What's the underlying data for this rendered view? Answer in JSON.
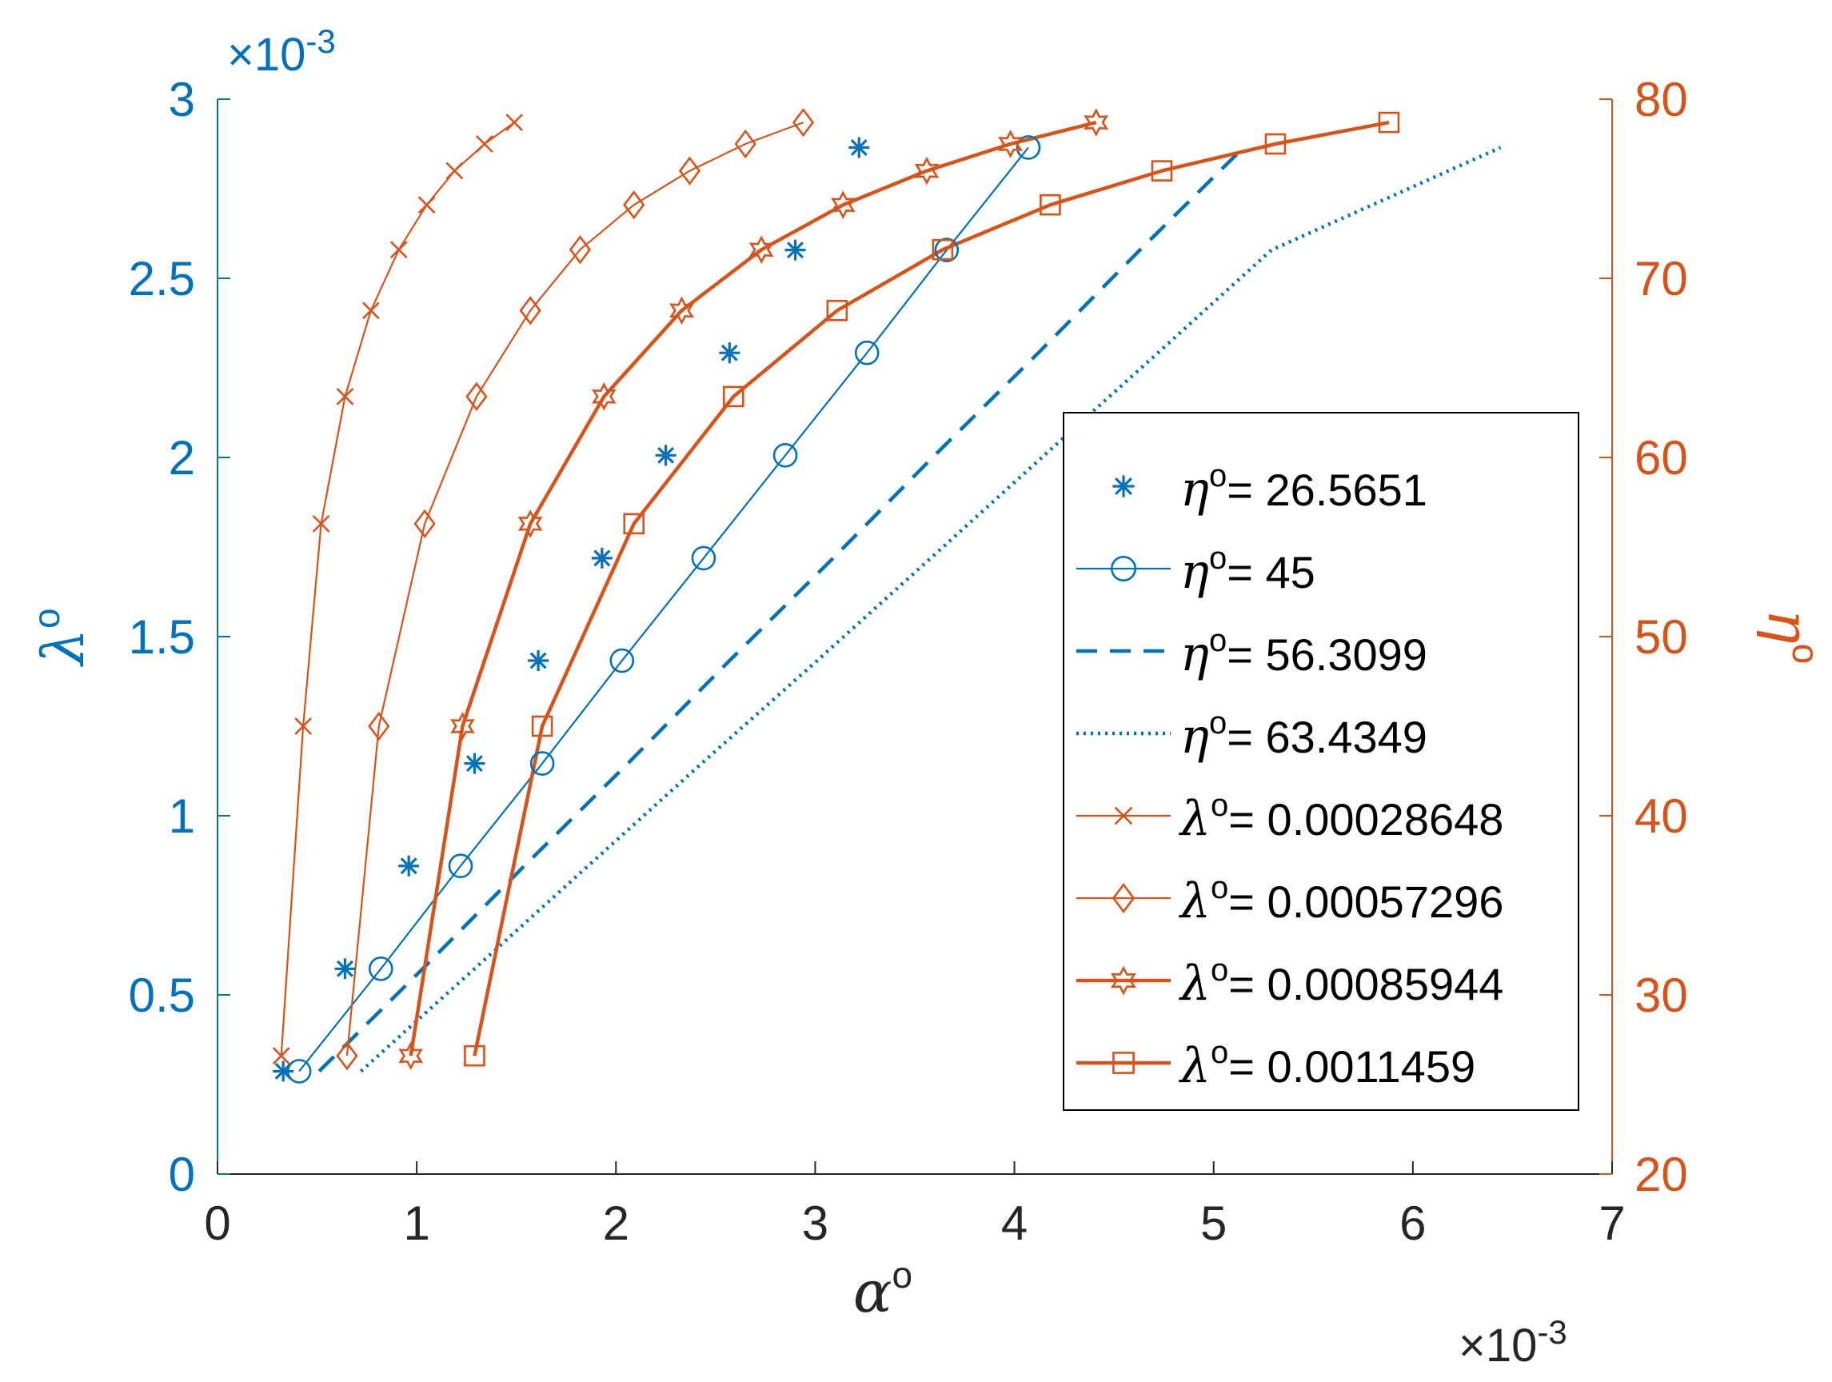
{
  "chart_data": {
    "type": "line",
    "xlabel": "α",
    "xlabel_sup": "o",
    "ylabel_left": "λ",
    "ylabel_left_sup": "o",
    "ylabel_right": "η",
    "ylabel_right_sup": "o",
    "x_exponent_label": "×10",
    "x_exponent_power": "-3",
    "y_left_exponent_label": "×10",
    "y_left_exponent_power": "-3",
    "xlim": [
      0,
      0.007
    ],
    "ylim_left": [
      0,
      0.003
    ],
    "ylim_right": [
      20,
      80
    ],
    "x_ticks": [
      0,
      0.001,
      0.002,
      0.003,
      0.004,
      0.005,
      0.006,
      0.007
    ],
    "x_tick_labels": [
      "0",
      "1",
      "2",
      "3",
      "4",
      "5",
      "6",
      "7"
    ],
    "y_left_ticks": [
      0,
      0.0005,
      0.001,
      0.0015,
      0.002,
      0.0025,
      0.003
    ],
    "y_left_tick_labels": [
      "0",
      "0.5",
      "1",
      "1.5",
      "2",
      "2.5",
      "3"
    ],
    "y_right_ticks": [
      20,
      30,
      40,
      50,
      60,
      70,
      80
    ],
    "y_right_tick_labels": [
      "20",
      "30",
      "40",
      "50",
      "60",
      "70",
      "80"
    ],
    "colors": {
      "left": "#0072BD",
      "right": "#D95319",
      "axis_text": "#262626"
    },
    "legend_position": "middle-right",
    "series": [
      {
        "name_symbol": "η",
        "name_sup": "o",
        "name_value": "= 26.5651",
        "axis": "left",
        "marker": "asterisk",
        "line": "none",
        "weight": "thin",
        "x": [
          0.00033,
          0.00064,
          0.00096,
          0.00129,
          0.00161,
          0.00193,
          0.00225,
          0.00257,
          0.0029,
          0.00322
        ],
        "y": [
          0.000287,
          0.000573,
          0.00086,
          0.001146,
          0.001433,
          0.001719,
          0.002006,
          0.002292,
          0.002579,
          0.002865
        ]
      },
      {
        "name_symbol": "η",
        "name_sup": "o",
        "name_value": "= 45",
        "axis": "left",
        "marker": "circle",
        "line": "solid",
        "weight": "thin",
        "x": [
          0.00041,
          0.00082,
          0.00122,
          0.00163,
          0.00203,
          0.00244,
          0.00285,
          0.00326,
          0.00366,
          0.00407
        ],
        "y": [
          0.000287,
          0.000573,
          0.00086,
          0.001146,
          0.001433,
          0.001719,
          0.002006,
          0.002292,
          0.002579,
          0.002865
        ]
      },
      {
        "name_symbol": "η",
        "name_sup": "o",
        "name_value": "= 56.3099",
        "axis": "left",
        "marker": "none",
        "line": "dashed",
        "weight": "thick",
        "x": [
          0.00051,
          0.00103,
          0.00154,
          0.00206,
          0.00257,
          0.00309,
          0.0036,
          0.00412,
          0.00463,
          0.00515
        ],
        "y": [
          0.000287,
          0.000573,
          0.00086,
          0.001146,
          0.001433,
          0.001719,
          0.002006,
          0.002292,
          0.002579,
          0.002865
        ]
      },
      {
        "name_symbol": "η",
        "name_sup": "o",
        "name_value": "= 63.4349",
        "axis": "left",
        "marker": "none",
        "line": "dotted",
        "weight": "thick",
        "x": [
          0.00072,
          0.00129,
          0.00186,
          0.00243,
          0.00301,
          0.00358,
          0.00415,
          0.00472,
          0.00529,
          0.00644
        ],
        "y": [
          0.000287,
          0.000573,
          0.00086,
          0.001146,
          0.001433,
          0.001719,
          0.002006,
          0.002292,
          0.002579,
          0.002865
        ]
      },
      {
        "name_symbol": "λ",
        "name_sup": "o",
        "name_value": "= 0.00028648",
        "axis": "right",
        "marker": "cross",
        "line": "solid",
        "weight": "thin",
        "x": [
          0.00032,
          0.00043,
          0.00052,
          0.00064,
          0.00077,
          0.00091,
          0.00105,
          0.00119,
          0.00134,
          0.00149
        ],
        "y": [
          26.6,
          45.0,
          56.3,
          63.4,
          68.2,
          71.6,
          74.1,
          76.0,
          77.5,
          78.7
        ]
      },
      {
        "name_symbol": "λ",
        "name_sup": "o",
        "name_value": "= 0.00057296",
        "axis": "right",
        "marker": "diamond",
        "line": "solid",
        "weight": "thin",
        "x": [
          0.00065,
          0.00081,
          0.00104,
          0.0013,
          0.00157,
          0.00182,
          0.00209,
          0.00237,
          0.00265,
          0.00294
        ],
        "y": [
          26.6,
          45.0,
          56.3,
          63.4,
          68.2,
          71.6,
          74.1,
          76.0,
          77.5,
          78.7
        ]
      },
      {
        "name_symbol": "λ",
        "name_sup": "o",
        "name_value": "= 0.00085944",
        "axis": "right",
        "marker": "hexagram",
        "line": "solid",
        "weight": "thick",
        "x": [
          0.00097,
          0.00123,
          0.00157,
          0.00194,
          0.00233,
          0.00273,
          0.00314,
          0.00356,
          0.00398,
          0.00441
        ],
        "y": [
          26.6,
          45.0,
          56.3,
          63.4,
          68.2,
          71.6,
          74.1,
          76.0,
          77.5,
          78.7
        ]
      },
      {
        "name_symbol": "λ",
        "name_sup": "o",
        "name_value": "= 0.0011459",
        "axis": "right",
        "marker": "square",
        "line": "solid",
        "weight": "thick",
        "x": [
          0.00129,
          0.00163,
          0.00209,
          0.00259,
          0.00311,
          0.00364,
          0.00418,
          0.00474,
          0.00531,
          0.00588
        ],
        "y": [
          26.6,
          45.0,
          56.3,
          63.4,
          68.2,
          71.6,
          74.1,
          76.0,
          77.5,
          78.7
        ]
      }
    ]
  }
}
